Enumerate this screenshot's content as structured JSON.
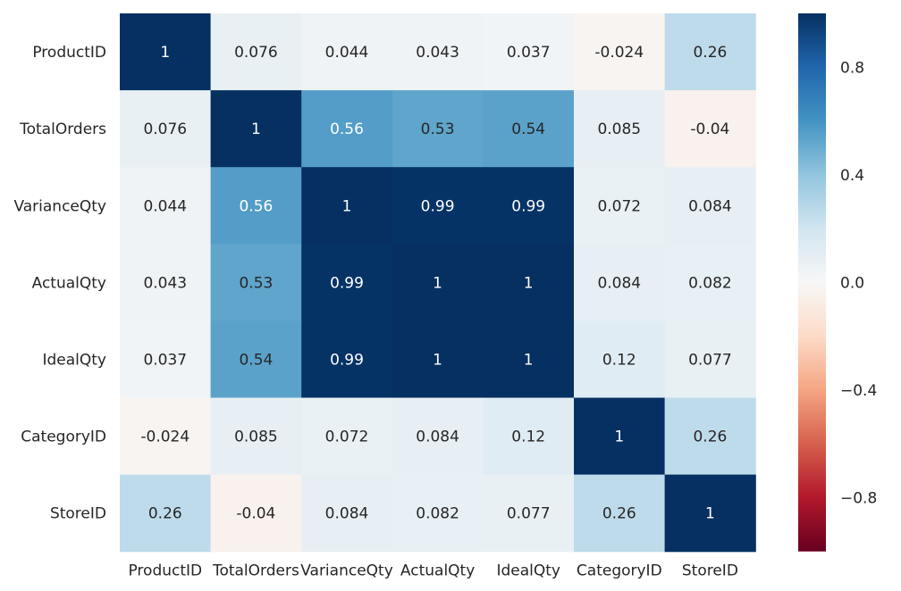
{
  "chart_data": {
    "type": "heatmap",
    "title": "",
    "xlabel": "",
    "ylabel": "",
    "rows": [
      "ProductID",
      "TotalOrders",
      "VarianceQty",
      "ActualQty",
      "IdealQty",
      "CategoryID",
      "StoreID"
    ],
    "columns": [
      "ProductID",
      "TotalOrders",
      "VarianceQty",
      "ActualQty",
      "IdealQty",
      "CategoryID",
      "StoreID"
    ],
    "values": [
      [
        1,
        0.076,
        0.044,
        0.043,
        0.037,
        -0.024,
        0.26
      ],
      [
        0.076,
        1,
        0.56,
        0.53,
        0.54,
        0.085,
        -0.04
      ],
      [
        0.044,
        0.56,
        1,
        0.99,
        0.99,
        0.072,
        0.084
      ],
      [
        0.043,
        0.53,
        0.99,
        1,
        1,
        0.084,
        0.082
      ],
      [
        0.037,
        0.54,
        0.99,
        1,
        1,
        0.12,
        0.077
      ],
      [
        -0.024,
        0.085,
        0.072,
        0.084,
        0.12,
        1,
        0.26
      ],
      [
        0.26,
        -0.04,
        0.084,
        0.082,
        0.077,
        0.26,
        1
      ]
    ],
    "annotations": [
      [
        "1",
        "0.076",
        "0.044",
        "0.043",
        "0.037",
        "-0.024",
        "0.26"
      ],
      [
        "0.076",
        "1",
        "0.56",
        "0.53",
        "0.54",
        "0.085",
        "-0.04"
      ],
      [
        "0.044",
        "0.56",
        "1",
        "0.99",
        "0.99",
        "0.072",
        "0.084"
      ],
      [
        "0.043",
        "0.53",
        "0.99",
        "1",
        "1",
        "0.084",
        "0.082"
      ],
      [
        "0.037",
        "0.54",
        "0.99",
        "1",
        "1",
        "0.12",
        "0.077"
      ],
      [
        "-0.024",
        "0.085",
        "0.072",
        "0.084",
        "0.12",
        "1",
        "0.26"
      ],
      [
        "0.26",
        "-0.04",
        "0.084",
        "0.082",
        "0.077",
        "0.26",
        "1"
      ]
    ],
    "colormap": "RdBu",
    "colormap_stops": [
      "#67001f",
      "#b2182b",
      "#d6604d",
      "#f4a582",
      "#fddbc7",
      "#f7f7f7",
      "#d1e5f0",
      "#92c5de",
      "#4393c3",
      "#2166ac",
      "#053061"
    ],
    "vmin": -1,
    "vmax": 1,
    "colorbar_ticks": [
      "0.8",
      "0.4",
      "0.0",
      "−0.4",
      "−0.8"
    ],
    "grid": false
  }
}
